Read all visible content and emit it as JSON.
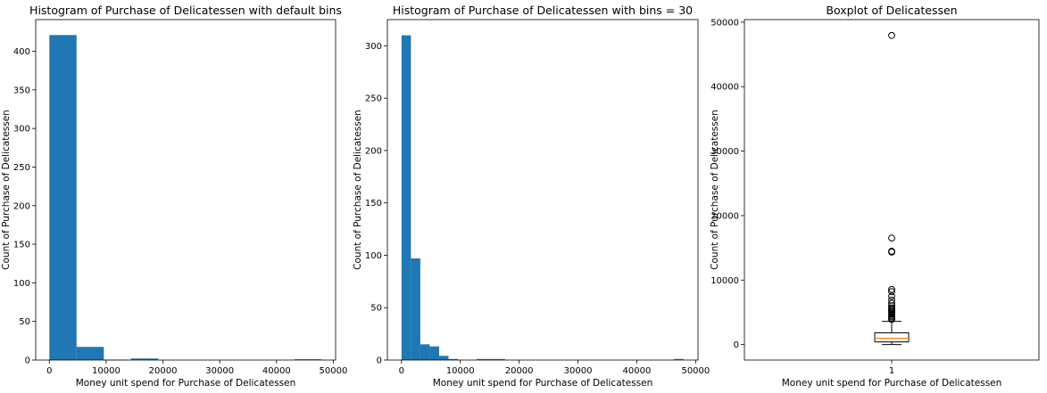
{
  "figure": {
    "background": "#ffffff",
    "bar_color": "#1f77b4"
  },
  "chart_data": [
    {
      "type": "bar",
      "title": "Histogram of Purchase of Delicatessen with default bins",
      "xlabel": "Money unit spend for Purchase of Delicatessen",
      "ylabel": "Count of Purchase of Delicatessen",
      "xlim": [
        -2400,
        50400
      ],
      "ylim": [
        0,
        441
      ],
      "xticks": [
        0,
        10000,
        20000,
        30000,
        40000,
        50000
      ],
      "yticks": [
        0,
        50,
        100,
        150,
        200,
        250,
        300,
        350,
        400
      ],
      "bins": [
        {
          "x0": 3,
          "x1": 4797,
          "count": 421
        },
        {
          "x0": 4797,
          "x1": 9591,
          "count": 17
        },
        {
          "x0": 9591,
          "x1": 14385,
          "count": 0.5
        },
        {
          "x0": 14385,
          "x1": 19179,
          "count": 2
        },
        {
          "x0": 19179,
          "x1": 23973,
          "count": 0
        },
        {
          "x0": 23973,
          "x1": 28767,
          "count": 0
        },
        {
          "x0": 28767,
          "x1": 33561,
          "count": 0
        },
        {
          "x0": 33561,
          "x1": 38355,
          "count": 0
        },
        {
          "x0": 38355,
          "x1": 43149,
          "count": 0
        },
        {
          "x0": 43149,
          "x1": 47943,
          "count": 1
        }
      ]
    },
    {
      "type": "bar",
      "title": "Histogram of Purchase of Delicatessen with bins = 30",
      "xlabel": "Money unit spend for Purchase of Delicatessen",
      "ylabel": "Count of Purchase of Delicatessen",
      "xlim": [
        -2400,
        50400
      ],
      "ylim": [
        0,
        325
      ],
      "xticks": [
        0,
        10000,
        20000,
        30000,
        40000,
        50000
      ],
      "yticks": [
        0,
        50,
        100,
        150,
        200,
        250,
        300
      ],
      "bins": [
        {
          "x0": 3,
          "x1": 1601,
          "count": 310
        },
        {
          "x0": 1601,
          "x1": 3199,
          "count": 97
        },
        {
          "x0": 3199,
          "x1": 4797,
          "count": 15
        },
        {
          "x0": 4797,
          "x1": 6395,
          "count": 13
        },
        {
          "x0": 6395,
          "x1": 7993,
          "count": 4
        },
        {
          "x0": 7993,
          "x1": 9591,
          "count": 1
        },
        {
          "x0": 12787,
          "x1": 14385,
          "count": 1
        },
        {
          "x0": 14385,
          "x1": 15983,
          "count": 1
        },
        {
          "x0": 15983,
          "x1": 17581,
          "count": 1
        },
        {
          "x0": 46345,
          "x1": 47943,
          "count": 1
        }
      ]
    },
    {
      "type": "boxplot",
      "title": "Boxplot of Delicatessen",
      "xlabel": "Money unit spend for Purchase of Delicatessen",
      "ylabel": "Count of Purchase of Delicatessen",
      "xticks": [
        "1"
      ],
      "ylim": [
        -2400,
        50400
      ],
      "yticks": [
        0,
        10000,
        20000,
        30000,
        40000,
        50000
      ],
      "box": {
        "whisker_low": 3,
        "q1": 408,
        "median": 966,
        "q3": 1820,
        "whisker_high": 3600,
        "median_color": "#ff7f0e",
        "outliers": [
          3900,
          4100,
          4300,
          4500,
          4700,
          4900,
          5100,
          5300,
          5500,
          5700,
          6000,
          6400,
          6900,
          7500,
          8200,
          8550,
          14350,
          14470,
          16523,
          47943
        ]
      }
    }
  ]
}
